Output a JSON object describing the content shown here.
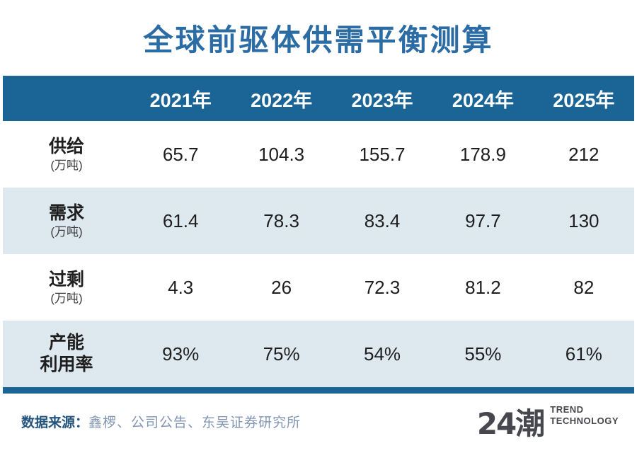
{
  "title": "全球前驱体供需平衡测算",
  "table": {
    "year_headers": [
      "2021年",
      "2022年",
      "2023年",
      "2024年",
      "2025年"
    ],
    "rows": [
      {
        "label": "供给",
        "sublabel": "(万吨)",
        "values": [
          "65.7",
          "104.3",
          "155.7",
          "178.9",
          "212"
        ]
      },
      {
        "label": "需求",
        "sublabel": "(万吨)",
        "values": [
          "61.4",
          "78.3",
          "83.4",
          "97.7",
          "130"
        ]
      },
      {
        "label": "过剩",
        "sublabel": "(万吨)",
        "values": [
          "4.3",
          "26",
          "72.3",
          "81.2",
          "82"
        ]
      },
      {
        "label": "产能",
        "sublabel": "利用率",
        "values": [
          "93%",
          "75%",
          "54%",
          "55%",
          "61%"
        ]
      }
    ]
  },
  "footer": {
    "source_label": "数据来源：",
    "source_text": "鑫椤、公司公告、东吴证券研究所",
    "logo_text": "24潮",
    "logo_sub_line1": "TREND",
    "logo_sub_line2": "TECHNOLOGY"
  },
  "colors": {
    "header_blue": "#1a6496",
    "light_row": "#dee8ef",
    "title_blue": "#2c6ca4",
    "source_label_blue": "#24557f",
    "source_text_blue": "#8396b4",
    "logo_gray": "#47474e"
  },
  "chart_data": {
    "type": "table",
    "title": "全球前驱体供需平衡测算",
    "categories": [
      "2021年",
      "2022年",
      "2023年",
      "2024年",
      "2025年"
    ],
    "series": [
      {
        "name": "供给(万吨)",
        "values": [
          65.7,
          104.3,
          155.7,
          178.9,
          212
        ]
      },
      {
        "name": "需求(万吨)",
        "values": [
          61.4,
          78.3,
          83.4,
          97.7,
          130
        ]
      },
      {
        "name": "过剩(万吨)",
        "values": [
          4.3,
          26,
          72.3,
          81.2,
          82
        ]
      },
      {
        "name": "产能利用率",
        "values": [
          "93%",
          "75%",
          "54%",
          "55%",
          "61%"
        ]
      }
    ],
    "source": "鑫椤、公司公告、东吴证券研究所"
  }
}
